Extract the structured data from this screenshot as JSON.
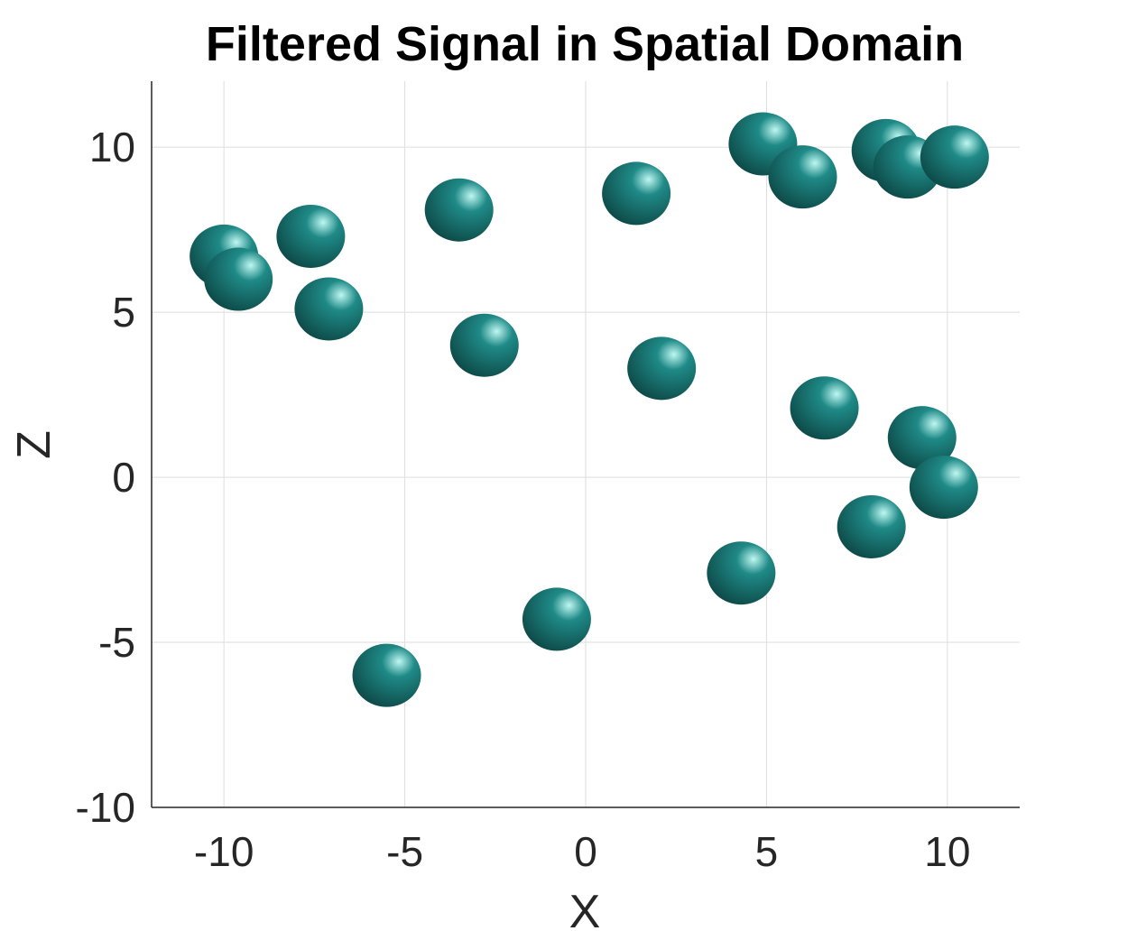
{
  "chart_data": {
    "type": "scatter",
    "title": "Filtered Signal in Spatial Domain",
    "xlabel": "X",
    "ylabel": "Z",
    "xlim": [
      -12,
      12
    ],
    "ylim": [
      -10,
      12
    ],
    "xticks": [
      -10,
      -5,
      0,
      5,
      10
    ],
    "yticks": [
      -10,
      -5,
      0,
      5,
      10
    ],
    "xtick_labels": [
      "-10",
      "-5",
      "0",
      "5",
      "10"
    ],
    "ytick_labels": [
      "-10",
      "-5",
      "0",
      "5",
      "10"
    ],
    "grid": true,
    "marker": "3D sphere isosurface",
    "color": "#1f8a87",
    "highlight_color": "#bff7f2",
    "shadow_color": "#0a3e3c",
    "points": [
      {
        "x": -10.0,
        "z": 6.7
      },
      {
        "x": -9.6,
        "z": 6.0
      },
      {
        "x": -7.6,
        "z": 7.3
      },
      {
        "x": -7.1,
        "z": 5.1
      },
      {
        "x": -3.5,
        "z": 8.1
      },
      {
        "x": -2.8,
        "z": 4.0
      },
      {
        "x": 1.4,
        "z": 8.6
      },
      {
        "x": 2.1,
        "z": 3.3
      },
      {
        "x": 4.9,
        "z": 10.1
      },
      {
        "x": 6.0,
        "z": 9.1
      },
      {
        "x": 8.3,
        "z": 9.9
      },
      {
        "x": 8.9,
        "z": 9.4
      },
      {
        "x": 10.2,
        "z": 9.7
      },
      {
        "x": 6.6,
        "z": 2.1
      },
      {
        "x": 9.3,
        "z": 1.2
      },
      {
        "x": 9.9,
        "z": -0.3
      },
      {
        "x": 7.9,
        "z": -1.5
      },
      {
        "x": 4.3,
        "z": -2.9
      },
      {
        "x": -0.8,
        "z": -4.3
      },
      {
        "x": -5.5,
        "z": -6.0
      }
    ]
  }
}
